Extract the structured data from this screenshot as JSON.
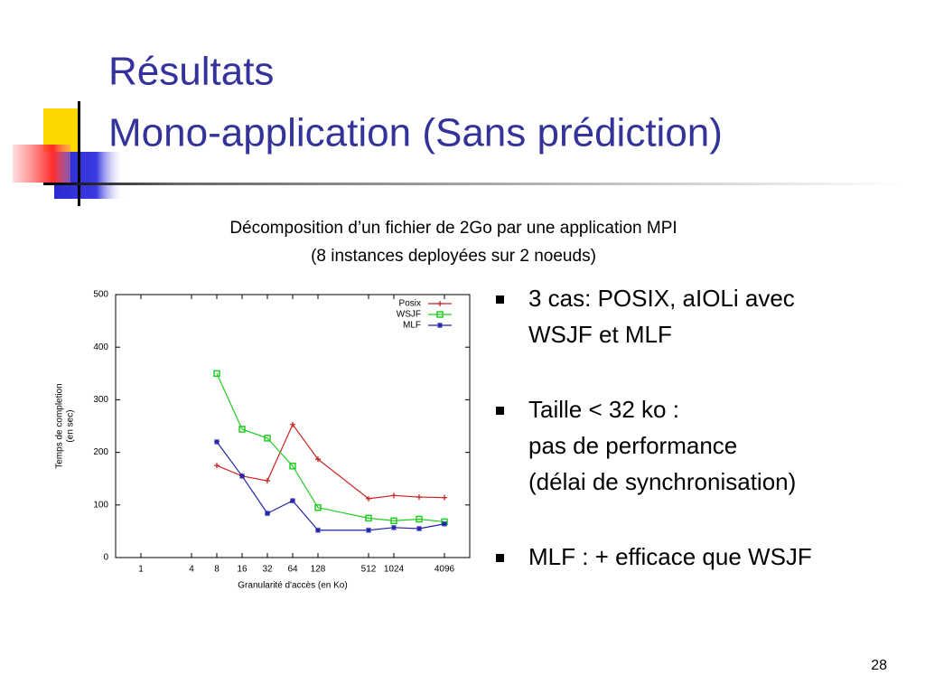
{
  "header": {
    "title": [
      "Résultats",
      "Mono-application (Sans prédiction)"
    ]
  },
  "caption": [
    "Décomposition d’un fichier de 2Go par une application MPI",
    "(8 instances deployées sur 2 noeuds)"
  ],
  "bullets": [
    [
      "3 cas: POSIX, aIOLi avec",
      "WSJF et MLF"
    ],
    [
      "Taille < 32 ko :",
      "pas de performance",
      "(délai de synchronisation)"
    ],
    [
      "MLF : + efficace que WSJF"
    ]
  ],
  "page_number": "28",
  "chart_data": {
    "type": "line",
    "xlabel": "Granularité d'accès (en Ko)",
    "ylabel": "Temps de completion",
    "ylabel_unit": "(en sec)",
    "x": [
      8,
      16,
      32,
      64,
      128,
      512,
      1024,
      2048,
      4096
    ],
    "series": [
      {
        "name": "Posix",
        "color": "#cc2020",
        "marker": "plus",
        "values": [
          175,
          155,
          146,
          253,
          187,
          112,
          118,
          115,
          114
        ]
      },
      {
        "name": "WSJF",
        "color": "#22cc22",
        "marker": "square",
        "values": [
          350,
          244,
          227,
          174,
          95,
          75,
          70,
          73,
          68
        ]
      },
      {
        "name": "MLF",
        "color": "#2222aa",
        "marker": "star",
        "values": [
          220,
          155,
          84,
          108,
          52,
          52,
          57,
          55,
          64
        ]
      }
    ],
    "xscale": "log",
    "xlog_base": 2,
    "xlim": [
      0.5,
      8192
    ],
    "xticks": [
      1,
      4,
      8,
      16,
      32,
      64,
      128,
      512,
      1024,
      4096
    ],
    "ylim": [
      0,
      500
    ],
    "yticks": [
      0,
      100,
      200,
      300,
      400,
      500
    ],
    "legend": "upper right"
  }
}
